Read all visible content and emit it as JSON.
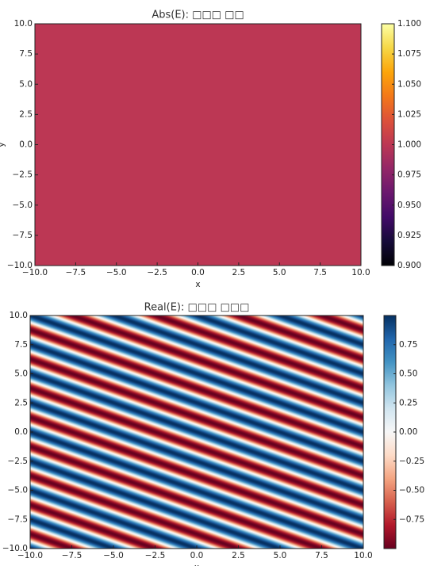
{
  "chart_data": [
    {
      "type": "heatmap",
      "title": "Abs(E): □□□ □□",
      "xlabel": "x",
      "ylabel": "y",
      "cmap": "inferno",
      "z": 1.0,
      "xlim": [
        -10,
        10
      ],
      "ylim": [
        -10,
        10
      ],
      "xticks": [
        {
          "value": -10,
          "label": "−10.0"
        },
        {
          "value": -7.5,
          "label": "−7.5"
        },
        {
          "value": -5,
          "label": "−5.0"
        },
        {
          "value": -2.5,
          "label": "−2.5"
        },
        {
          "value": 0,
          "label": "0.0"
        },
        {
          "value": 2.5,
          "label": "2.5"
        },
        {
          "value": 5,
          "label": "5.0"
        },
        {
          "value": 7.5,
          "label": "7.5"
        },
        {
          "value": 10,
          "label": "10.0"
        }
      ],
      "yticks": [
        {
          "value": -10,
          "label": "−10.0"
        },
        {
          "value": -7.5,
          "label": "−7.5"
        },
        {
          "value": -5,
          "label": "−5.0"
        },
        {
          "value": -2.5,
          "label": "−2.5"
        },
        {
          "value": 0,
          "label": "0.0"
        },
        {
          "value": 2.5,
          "label": "2.5"
        },
        {
          "value": 5,
          "label": "5.0"
        },
        {
          "value": 7.5,
          "label": "7.5"
        },
        {
          "value": 10,
          "label": "10.0"
        }
      ],
      "clim": [
        0.9,
        1.1
      ],
      "cticks": [
        {
          "value": 0.9,
          "label": "0.900"
        },
        {
          "value": 0.925,
          "label": "0.925"
        },
        {
          "value": 0.95,
          "label": "0.950"
        },
        {
          "value": 0.975,
          "label": "0.975"
        },
        {
          "value": 1.0,
          "label": "1.000"
        },
        {
          "value": 1.025,
          "label": "1.025"
        },
        {
          "value": 1.05,
          "label": "1.050"
        },
        {
          "value": 1.075,
          "label": "1.075"
        },
        {
          "value": 1.1,
          "label": "1.100"
        }
      ]
    },
    {
      "type": "wave",
      "title": "Real(E): □□□ □□□",
      "xlabel": "x",
      "cmap": "RdBu",
      "wave": {
        "kx": 1.26,
        "ky": 2.51
      },
      "xlim": [
        -10,
        10
      ],
      "ylim": [
        -10,
        10
      ],
      "xticks": [
        {
          "value": -10,
          "label": "−10.0"
        },
        {
          "value": -7.5,
          "label": "−7.5"
        },
        {
          "value": -5,
          "label": "−5.0"
        },
        {
          "value": -2.5,
          "label": "−2.5"
        },
        {
          "value": 0,
          "label": "0.0"
        },
        {
          "value": 2.5,
          "label": "2.5"
        },
        {
          "value": 5,
          "label": "5.0"
        },
        {
          "value": 7.5,
          "label": "7.5"
        },
        {
          "value": 10,
          "label": "10.0"
        }
      ],
      "yticks": [
        {
          "value": -10,
          "label": "−10.0"
        },
        {
          "value": -7.5,
          "label": "−7.5"
        },
        {
          "value": -5,
          "label": "−5.0"
        },
        {
          "value": -2.5,
          "label": "−2.5"
        },
        {
          "value": 0,
          "label": "0.0"
        },
        {
          "value": 2.5,
          "label": "2.5"
        },
        {
          "value": 5,
          "label": "5.0"
        },
        {
          "value": 7.5,
          "label": "7.5"
        },
        {
          "value": 10,
          "label": "10.0"
        }
      ],
      "clim": [
        -1,
        1
      ],
      "cticks": [
        {
          "value": -0.75,
          "label": "−0.75"
        },
        {
          "value": -0.5,
          "label": "−0.50"
        },
        {
          "value": -0.25,
          "label": "−0.25"
        },
        {
          "value": 0,
          "label": "0.00"
        },
        {
          "value": 0.25,
          "label": "0.25"
        },
        {
          "value": 0.5,
          "label": "0.50"
        },
        0.75
      ]
    }
  ]
}
